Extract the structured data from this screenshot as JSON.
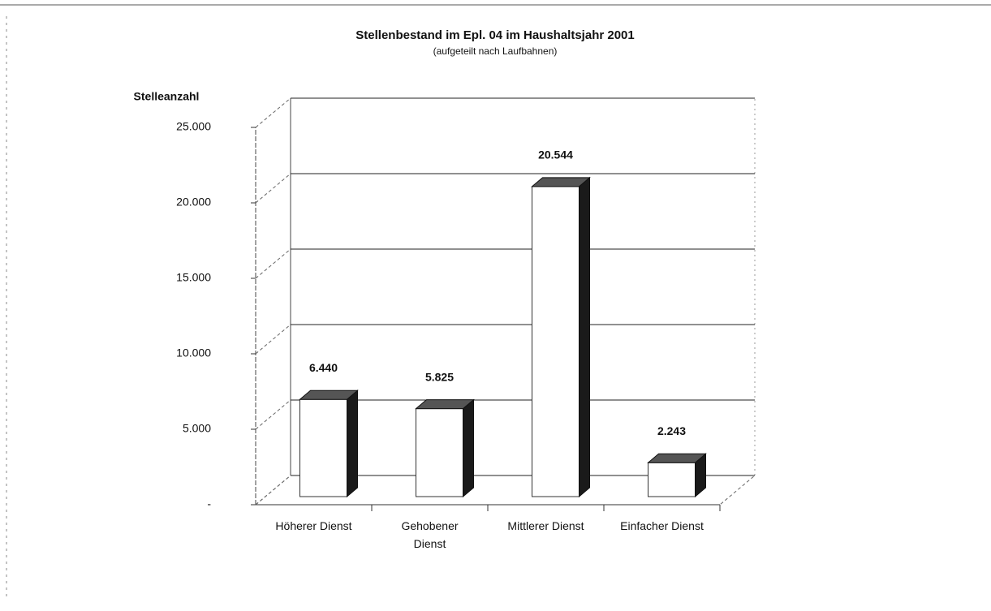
{
  "chart_data": {
    "type": "bar",
    "title": "Stellenbestand im Epl. 04 im Haushaltsjahr 2001",
    "subtitle": "(aufgeteilt nach Laufbahnen)",
    "y_label": "Stelleanzahl",
    "categories": [
      "Höherer Dienst",
      "Gehobener Dienst",
      "Mittlerer Dienst",
      "Einfacher Dienst"
    ],
    "values": [
      6440,
      5825,
      20544,
      2243
    ],
    "value_labels": [
      "6.440",
      "5.825",
      "20.544",
      "2.243"
    ],
    "color": "#ffffff",
    "ylim": [
      0,
      25000
    ],
    "yticks": [
      {
        "value": 0,
        "label": "-"
      },
      {
        "value": 5000,
        "label": "5.000"
      },
      {
        "value": 10000,
        "label": "10.000"
      },
      {
        "value": 15000,
        "label": "15.000"
      },
      {
        "value": 20000,
        "label": "20.000"
      },
      {
        "value": 25000,
        "label": "25.000"
      }
    ],
    "grid": true
  }
}
